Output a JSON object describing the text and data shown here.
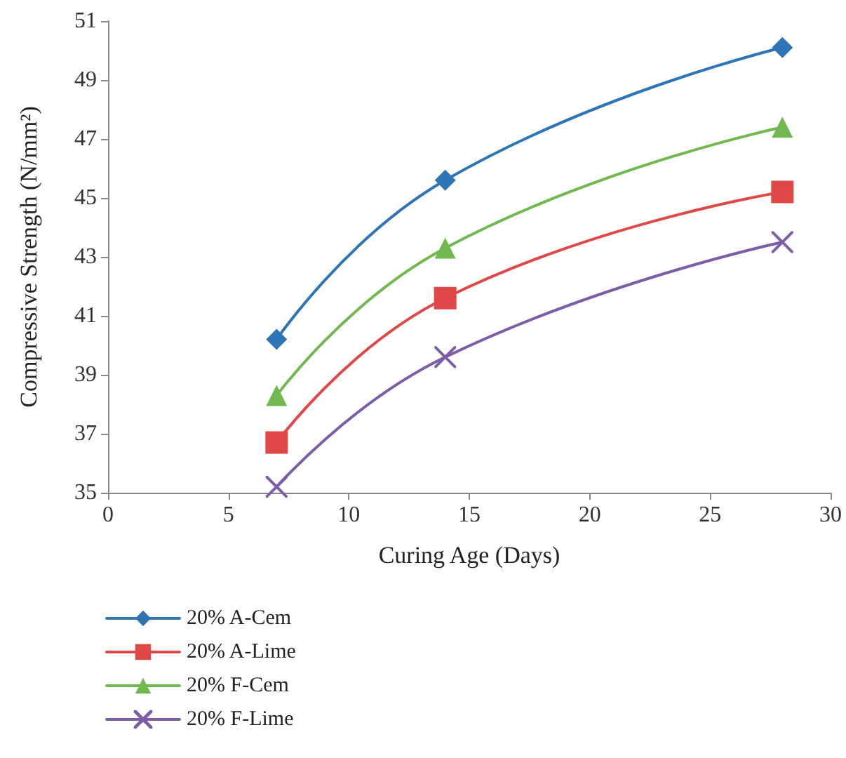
{
  "chart_data": {
    "type": "line",
    "xlabel": "Curing Age (Days)",
    "ylabel": "Compressive Strength (N/mm²)",
    "x": [
      7,
      14,
      28
    ],
    "xlim": [
      0,
      30
    ],
    "xticks": [
      0,
      5,
      10,
      15,
      20,
      25,
      30
    ],
    "ylim": [
      35,
      51
    ],
    "yticks": [
      35,
      37,
      39,
      41,
      43,
      45,
      47,
      49,
      51
    ],
    "grid": false,
    "legend": "bottom left",
    "line_style": "solid",
    "series": [
      {
        "name": "20% A-Cem",
        "color": "#2e75b6",
        "marker": "diamond",
        "values": [
          40.2,
          45.6,
          50.1
        ]
      },
      {
        "name": "20% A-Lime",
        "color": "#e04848",
        "marker": "square",
        "values": [
          36.7,
          41.6,
          45.2
        ]
      },
      {
        "name": "20% F-Cem",
        "color": "#70b84f",
        "marker": "triangle",
        "values": [
          38.3,
          43.3,
          47.4
        ]
      },
      {
        "name": "20% F-Lime",
        "color": "#7b5ea7",
        "marker": "cross",
        "values": [
          35.2,
          39.6,
          43.5
        ]
      }
    ]
  }
}
